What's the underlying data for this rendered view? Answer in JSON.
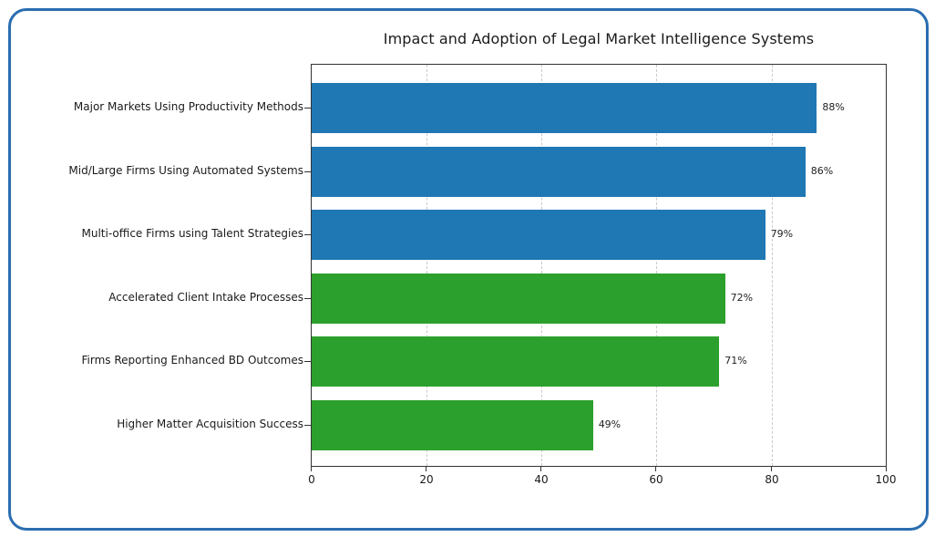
{
  "chart_data": {
    "type": "bar",
    "orientation": "horizontal",
    "title": "Impact and Adoption of Legal Market Intelligence Systems",
    "xlabel": "",
    "ylabel": "",
    "xlim": [
      0,
      100
    ],
    "grid": {
      "x": true,
      "y": false,
      "style": "dashed"
    },
    "legend": null,
    "x_ticks": [
      "0",
      "20",
      "40",
      "60",
      "80",
      "100"
    ],
    "categories": [
      "Major Markets Using Productivity Methods",
      "Mid/Large Firms Using Automated Systems",
      "Multi-office Firms using Talent Strategies",
      "Accelerated Client Intake Processes",
      "Firms Reporting Enhanced BD Outcomes",
      "Higher Matter Acquisition Success"
    ],
    "values": [
      88,
      86,
      79,
      72,
      71,
      49
    ],
    "value_labels": [
      "88%",
      "86%",
      "79%",
      "72%",
      "71%",
      "49%"
    ],
    "bar_colors": [
      "#1f77b4",
      "#1f77b4",
      "#1f77b4",
      "#2ca02c",
      "#2ca02c",
      "#2ca02c"
    ]
  },
  "frame": {
    "border_color": "#2a6db0"
  }
}
